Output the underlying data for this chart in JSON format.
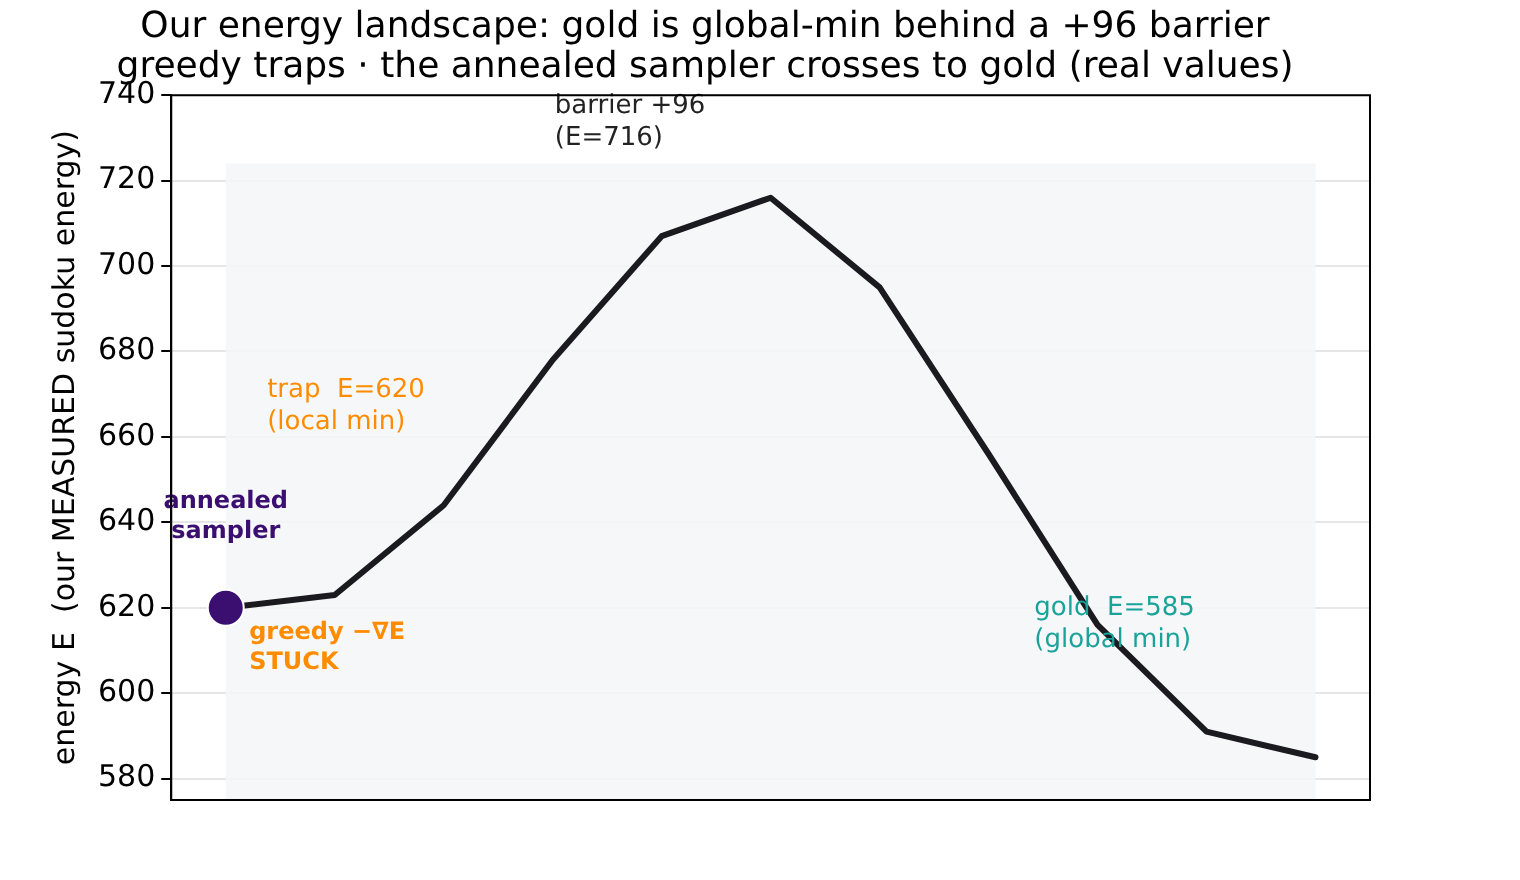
{
  "chart_data": {
    "type": "line",
    "title": "Our energy landscape: gold is global-min behind a +96 barrier\ngreedy traps · the annealed sampler crosses to gold (real values)",
    "ylabel": "energy E  (our MEASURED sudoku energy)",
    "categories": [
      null,
      null,
      null,
      null,
      null,
      null,
      null,
      null,
      null,
      null,
      null
    ],
    "series": [
      {
        "color": "#1a1a1f",
        "values": [
          620,
          623,
          644,
          678,
          707,
          716,
          695,
          656,
          616,
          591,
          585
        ]
      },
      {
        "type": "scatter",
        "name": "annealed\nsampler",
        "color": "#3b0f70",
        "values": [
          620,
          null,
          null,
          null,
          null,
          null,
          null,
          null,
          null,
          null,
          null
        ]
      }
    ],
    "annotations": [
      "barrier +96\n(E=716)",
      "trap  E=620\n(local min)",
      "gold  E=585\n(global min)",
      "greedy −∇E\nSTUCK"
    ],
    "bands": [
      {
        "axis": "y",
        "from": 575,
        "to": 724,
        "color": "#f5f6f8"
      }
    ],
    "ylim": [
      575,
      740
    ],
    "yticks": [
      580,
      600,
      620,
      640,
      660,
      680,
      700,
      720,
      740
    ],
    "grid": "y",
    "tick_labels": "y",
    "legend": false
  }
}
